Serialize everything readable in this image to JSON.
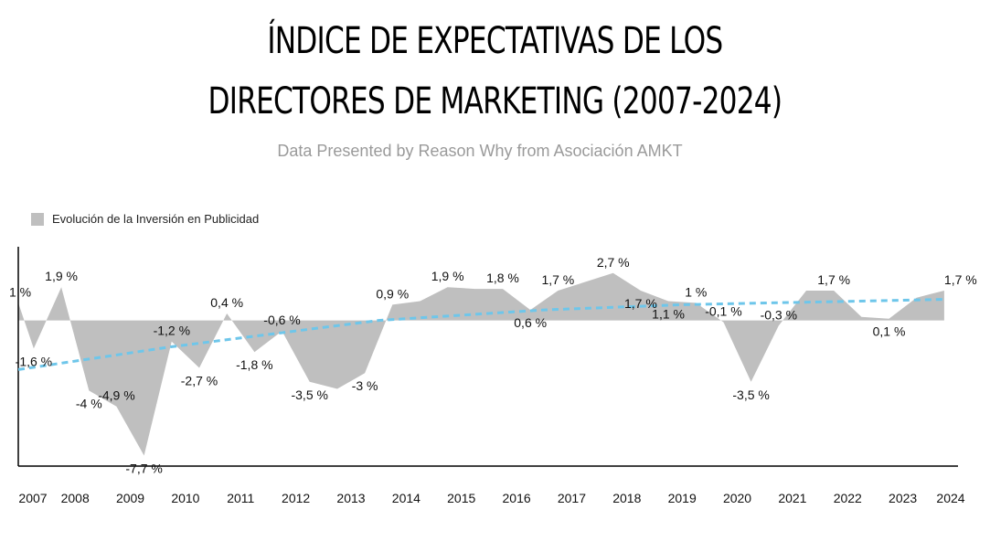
{
  "header": {
    "title_line1": "ÍNDICE DE EXPECTATIVAS DE LOS",
    "title_line2": "DIRECTORES DE MARKETING (2007-2024)",
    "subtitle": "Data Presented by Reason Why from Asociación AMKT"
  },
  "chart_data": {
    "type": "area",
    "legend": {
      "position": "top-left",
      "entries": [
        "Evolución de la Inversión en Publicidad"
      ]
    },
    "series": [
      {
        "name": "Evolución de la Inversión en Publicidad",
        "color": "#bfbfbf",
        "points": [
          {
            "x": 2006.97,
            "y": 1,
            "label": "1 %"
          },
          {
            "x": 2007.25,
            "y": -1.6,
            "label": "-1,6 %"
          },
          {
            "x": 2007.75,
            "y": 1.9,
            "label": "1,9 %"
          },
          {
            "x": 2008.25,
            "y": -4,
            "label": "-4 %"
          },
          {
            "x": 2008.75,
            "y": -4.9,
            "label": "-4,9 %"
          },
          {
            "x": 2009.25,
            "y": -7.7,
            "label": "-7,7 %"
          },
          {
            "x": 2009.75,
            "y": -1.2,
            "label": "-1,2 %"
          },
          {
            "x": 2010.25,
            "y": -2.7,
            "label": "-2,7 %"
          },
          {
            "x": 2010.75,
            "y": 0.4,
            "label": "0,4 %"
          },
          {
            "x": 2011.25,
            "y": -1.8,
            "label": "-1,8 %"
          },
          {
            "x": 2011.75,
            "y": -0.6,
            "label": "-0,6 %"
          },
          {
            "x": 2012.25,
            "y": -3.5,
            "label": "-3,5 %"
          },
          {
            "x": 2012.75,
            "y": -3.9,
            "label": ""
          },
          {
            "x": 2013.25,
            "y": -3,
            "label": "-3 %"
          },
          {
            "x": 2013.75,
            "y": 0.9,
            "label": "0,9 %"
          },
          {
            "x": 2014.25,
            "y": 1.1,
            "label": ""
          },
          {
            "x": 2014.75,
            "y": 1.9,
            "label": "1,9 %"
          },
          {
            "x": 2015.25,
            "y": 1.8,
            "label": ""
          },
          {
            "x": 2015.75,
            "y": 1.8,
            "label": "1,8 %"
          },
          {
            "x": 2016.25,
            "y": 0.6,
            "label": "0,6 %"
          },
          {
            "x": 2016.75,
            "y": 1.7,
            "label": "1,7 %"
          },
          {
            "x": 2017.25,
            "y": 2.2,
            "label": ""
          },
          {
            "x": 2017.75,
            "y": 2.7,
            "label": "2,7 %"
          },
          {
            "x": 2018.25,
            "y": 1.7,
            "label": "1,7 %"
          },
          {
            "x": 2018.75,
            "y": 1.1,
            "label": "1,1 %"
          },
          {
            "x": 2019.25,
            "y": 1,
            "label": "1 %"
          },
          {
            "x": 2019.75,
            "y": -0.1,
            "label": "-0,1 %"
          },
          {
            "x": 2020.25,
            "y": -3.5,
            "label": "-3,5 %"
          },
          {
            "x": 2020.75,
            "y": -0.3,
            "label": "-0,3 %"
          },
          {
            "x": 2021.25,
            "y": 1.7,
            "label": ""
          },
          {
            "x": 2021.75,
            "y": 1.7,
            "label": "1,7 %"
          },
          {
            "x": 2022.25,
            "y": 0.2,
            "label": ""
          },
          {
            "x": 2022.75,
            "y": 0.1,
            "label": "0,1 %"
          },
          {
            "x": 2023.25,
            "y": 1.3,
            "label": ""
          },
          {
            "x": 2023.75,
            "y": 1.7,
            "label": "1,7 %"
          }
        ]
      },
      {
        "name": "trend",
        "color": "#6ec6ea",
        "style": "dashed",
        "points": [
          {
            "x": 2006.97,
            "y": -2.8
          },
          {
            "x": 2009.75,
            "y": -1.5
          },
          {
            "x": 2013.5,
            "y": 0.0
          },
          {
            "x": 2016.5,
            "y": 0.6
          },
          {
            "x": 2019.0,
            "y": 0.9
          },
          {
            "x": 2023.75,
            "y": 1.2
          }
        ]
      }
    ],
    "x_ticks": [
      {
        "value": 2007,
        "label": "2007"
      },
      {
        "value": 2008,
        "label": "2008"
      },
      {
        "value": 2009,
        "label": "2009"
      },
      {
        "value": 2010,
        "label": "2010"
      },
      {
        "value": 2011,
        "label": "2011"
      },
      {
        "value": 2012,
        "label": "2012"
      },
      {
        "value": 2013,
        "label": "2013"
      },
      {
        "value": 2014,
        "label": "2014"
      },
      {
        "value": 2015,
        "label": "2015"
      },
      {
        "value": 2016,
        "label": "2016"
      },
      {
        "value": 2017,
        "label": "2017"
      },
      {
        "value": 2018,
        "label": "2018"
      },
      {
        "value": 2019,
        "label": "2019"
      },
      {
        "value": 2020,
        "label": "2020"
      },
      {
        "value": 2021,
        "label": "2021"
      },
      {
        "value": 2022,
        "label": "2022"
      },
      {
        "value": 2023,
        "label": "2023"
      },
      {
        "value": 2024,
        "label": "2024"
      }
    ],
    "xlim": [
      2006.97,
      2024.0
    ],
    "ylim": [
      -8.3,
      4.2
    ],
    "grid": false
  }
}
